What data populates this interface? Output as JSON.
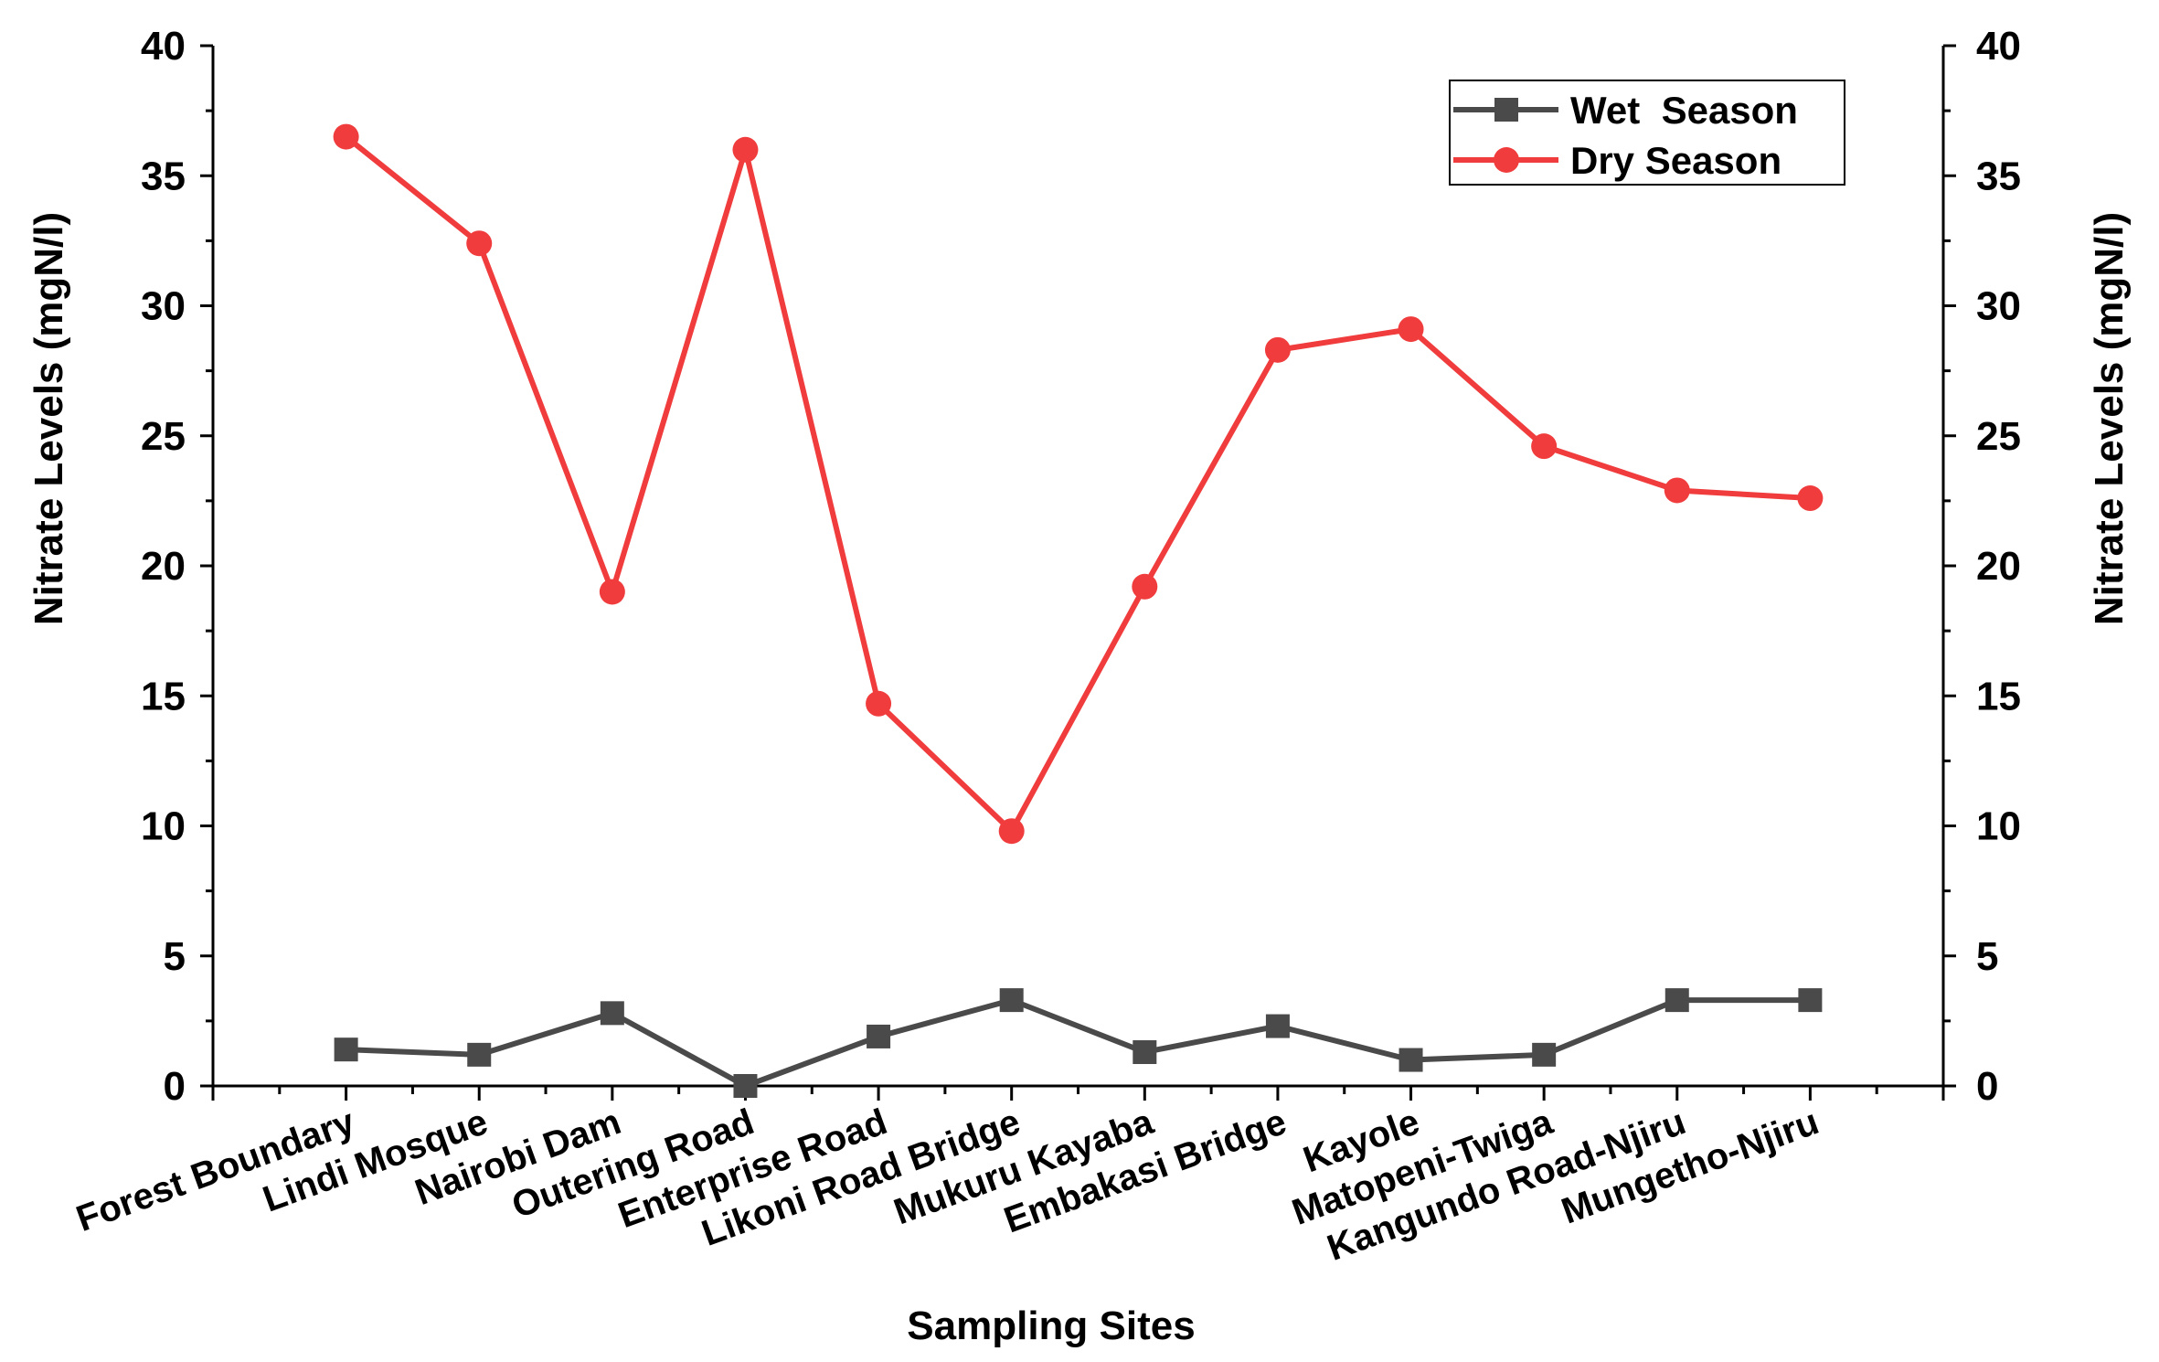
{
  "chart_data": {
    "type": "line",
    "title": "",
    "xlabel": "Sampling Sites",
    "ylabel_left": "Nitrate Levels (mgN/l)",
    "ylabel_right": "Nitrate Levels (mgN/l)",
    "ylim": [
      0,
      40
    ],
    "yticks": [
      "0",
      "5",
      "10",
      "15",
      "20",
      "25",
      "30",
      "35",
      "40"
    ],
    "categories": [
      "Forest Boundary",
      "Lindi Mosque",
      "Nairobi Dam",
      "Outering Road",
      "Enterprise Road",
      "Likoni Road Bridge",
      "Mukuru Kayaba",
      "Embakasi Bridge",
      "Kayole",
      "Matopeni-Twiga",
      "Kangundo Road-Njiru",
      "Mungetho-Njiru"
    ],
    "series": [
      {
        "name": "Wet  Season",
        "color": "#4a4a4a",
        "marker": "square",
        "values": [
          1.4,
          1.2,
          2.8,
          0.0,
          1.9,
          3.3,
          1.3,
          2.3,
          1.0,
          1.2,
          3.3,
          3.3
        ]
      },
      {
        "name": "Dry Season",
        "color": "#f03c3c",
        "marker": "circle",
        "values": [
          36.5,
          32.4,
          19.0,
          36.0,
          14.7,
          9.8,
          19.2,
          28.3,
          29.1,
          24.6,
          22.9,
          22.6
        ]
      }
    ],
    "legend_position": "top-right",
    "grid": false
  }
}
